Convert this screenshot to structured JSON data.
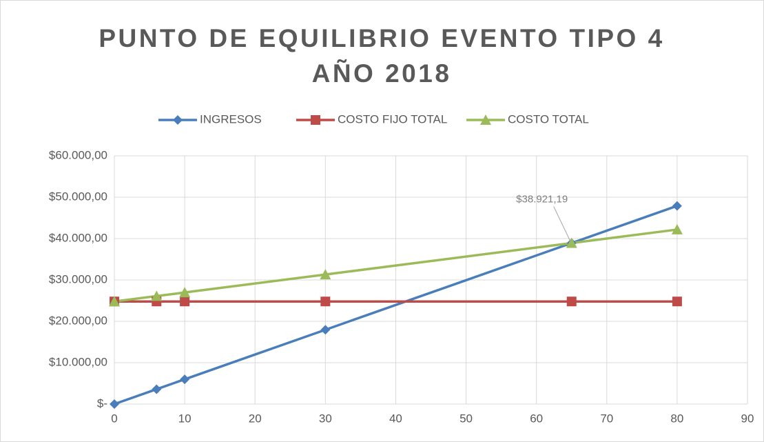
{
  "chart_data": {
    "type": "line",
    "title": [
      "PUNTO DE EQUILIBRIO EVENTO TIPO 4",
      "AÑO 2018"
    ],
    "x": [
      0,
      6,
      10,
      30,
      65,
      80
    ],
    "series": [
      {
        "name": "INGRESOS",
        "color": "#4a7ebb",
        "marker": "diamond",
        "values": [
          0,
          3593,
          5988,
          17964,
          38921,
          47903
        ]
      },
      {
        "name": "COSTO FIJO TOTAL",
        "color": "#be4b48",
        "marker": "square",
        "values": [
          24800,
          24800,
          24800,
          24800,
          24800,
          24800
        ]
      },
      {
        "name": "COSTO TOTAL",
        "color": "#9bbb59",
        "marker": "triangle",
        "values": [
          24800,
          26103,
          26972,
          31316,
          38921.19,
          42178
        ],
        "value_labels": [
          null,
          null,
          null,
          null,
          "$38.921,19",
          null
        ]
      }
    ],
    "xlim": [
      0,
      90
    ],
    "xticks": [
      0,
      10,
      20,
      30,
      40,
      50,
      60,
      70,
      80,
      90
    ],
    "ylim": [
      0,
      60000
    ],
    "yticks": [
      {
        "value": 0,
        "label": "$-"
      },
      {
        "value": 10000,
        "label": "$10.000,00"
      },
      {
        "value": 20000,
        "label": "$20.000,00"
      },
      {
        "value": 30000,
        "label": "$30.000,00"
      },
      {
        "value": 40000,
        "label": "$40.000,00"
      },
      {
        "value": 50000,
        "label": "$50.000,00"
      },
      {
        "value": 60000,
        "label": "$60.000,00"
      }
    ],
    "grid": true,
    "legend": "top"
  }
}
